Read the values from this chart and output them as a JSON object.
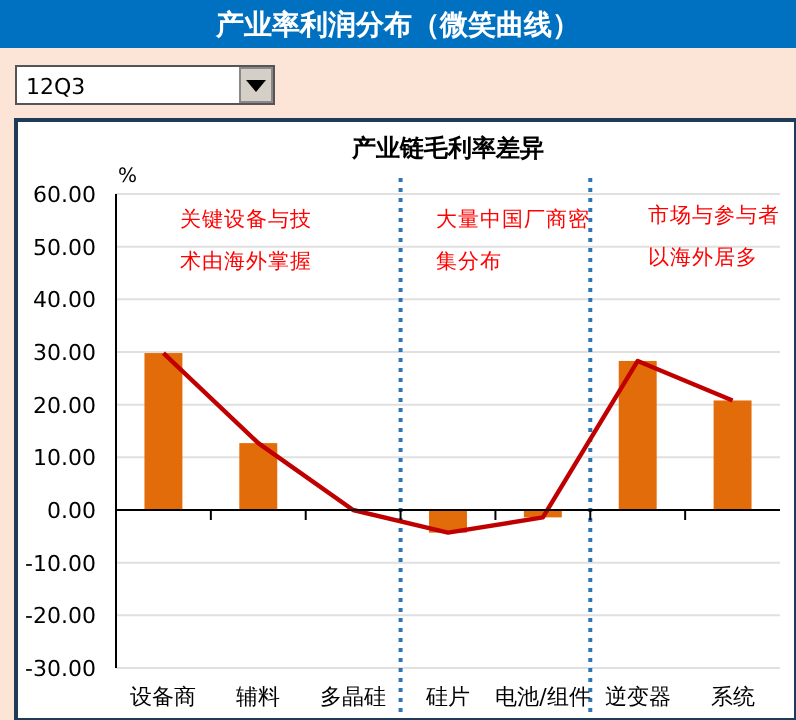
{
  "chart_data": {
    "type": "bar",
    "title": "产业率利润分布（微笑曲线）",
    "subtitle": "产业链毛利率差异",
    "ylabel": "%",
    "categories": [
      "设备商",
      "辅料",
      "多晶硅",
      "硅片",
      "电池/组件",
      "逆变器",
      "系统"
    ],
    "series": [
      {
        "color": "#e36c0a",
        "values": [
          29.8,
          12.7,
          0,
          -4.3,
          -1.4,
          28.3,
          20.8
        ]
      },
      {
        "type": "line",
        "color": "#c00000",
        "values": [
          29.8,
          12.7,
          0,
          -4.3,
          -1.4,
          28.3,
          20.8
        ]
      }
    ],
    "ylim": [
      -30,
      60
    ],
    "yticks": [
      {
        "value": -30,
        "label": "-30.00"
      },
      {
        "value": -20,
        "label": "-20.00"
      },
      {
        "value": -10,
        "label": "-10.00"
      },
      {
        "value": 0,
        "label": "0.00"
      },
      {
        "value": 10,
        "label": "10.00"
      },
      {
        "value": 20,
        "label": "20.00"
      },
      {
        "value": 30,
        "label": "30.00"
      },
      {
        "value": 40,
        "label": "40.00"
      },
      {
        "value": 50,
        "label": "50.00"
      },
      {
        "value": 60,
        "label": "60.00"
      }
    ],
    "grid": "y",
    "annotations": [
      "12Q3",
      "关键设备与技术由海外掌握",
      "大量中国厂商密集分布",
      "市场与参与者以海外居多"
    ]
  }
}
